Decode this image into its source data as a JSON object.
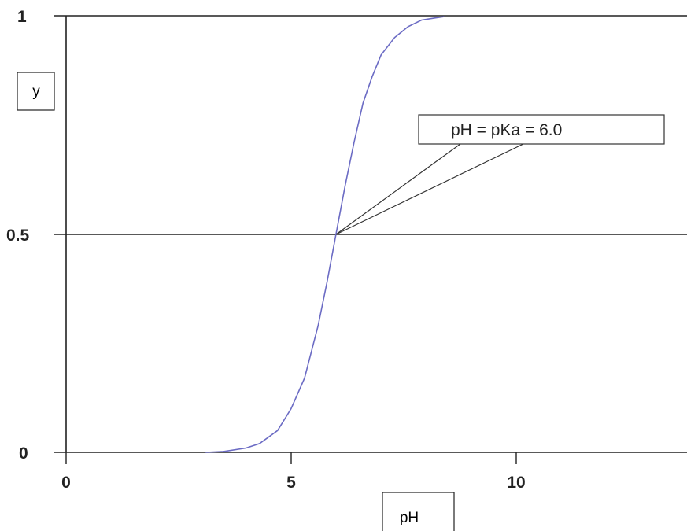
{
  "chart_data": {
    "type": "line",
    "title": "",
    "xlabel": "pH",
    "ylabel": "y",
    "xlim": [
      0,
      13.8
    ],
    "ylim": [
      0,
      1
    ],
    "x_ticks": [
      "0",
      "5",
      "10"
    ],
    "y_ticks": [
      "0",
      "0.5",
      "1"
    ],
    "grid": false,
    "reference_lines_y": [
      0.5,
      1
    ],
    "series": [
      {
        "x": [
          3.1,
          3.5,
          4.0,
          4.3,
          4.7,
          5.0,
          5.3,
          5.6,
          5.8,
          6.0,
          6.2,
          6.4,
          6.6,
          6.8,
          7.0,
          7.3,
          7.6,
          7.9,
          8.2,
          8.4
        ],
        "y": [
          0.0,
          0.002,
          0.01,
          0.02,
          0.05,
          0.1,
          0.17,
          0.29,
          0.39,
          0.5,
          0.61,
          0.71,
          0.8,
          0.86,
          0.91,
          0.95,
          0.975,
          0.99,
          0.995,
          0.998
        ],
        "color": "#6b6bc4"
      }
    ],
    "annotation": {
      "text": "pH = pKa = 6.0",
      "x": 6.0,
      "y": 0.5
    }
  },
  "colors": {
    "axis": "#222222",
    "curve": "#6b6bc4"
  }
}
